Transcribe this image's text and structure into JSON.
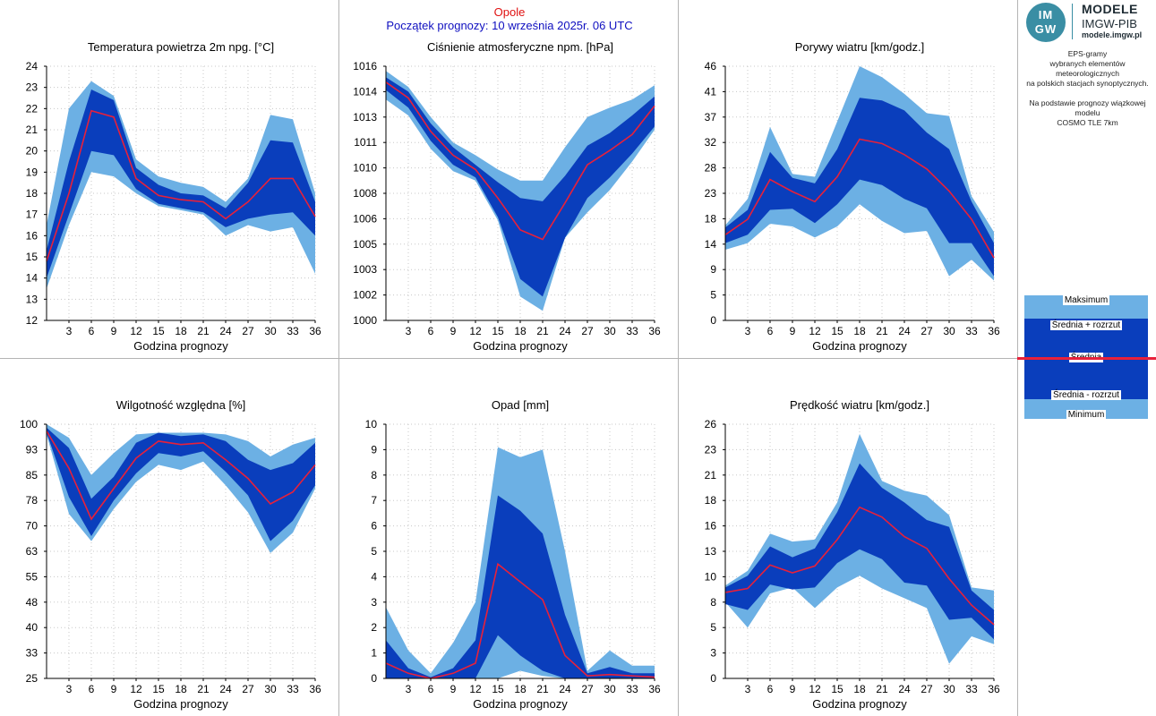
{
  "header": {
    "station": "Opole",
    "forecast_start": "Początek prognozy: 10 września 2025r. 06 UTC"
  },
  "logo": {
    "mark_line1": "IM",
    "mark_line2": "GW",
    "title": "MODELE",
    "org": "IMGW-PIB",
    "site": "modele.imgw.pl"
  },
  "description": {
    "line1": "EPS-gramy",
    "line2": "wybranych elementów meteorologicznych",
    "line3": "na polskich stacjach  synoptycznych.",
    "line4": "Na podstawie prognozy wiązkowej modelu",
    "line5": "COSMO TLE 7km"
  },
  "legend": {
    "max": "Maksimum",
    "mean_plus": "Średnia + rozrzut",
    "mean": "Średnia",
    "mean_minus": "Średnia - rozrzut",
    "min": "Minimum"
  },
  "colors": {
    "outer_band": "#6cb0e4",
    "inner_band": "#0a3ebc",
    "mean_line": "#e8203a",
    "grid": "#c8c8c8"
  },
  "chart_data": [
    {
      "id": "temp",
      "type": "area",
      "title": "Temperatura powietrza 2m npg. [°C]",
      "xlabel": "Godzina prognozy",
      "x": [
        0,
        3,
        6,
        9,
        12,
        15,
        18,
        21,
        24,
        27,
        30,
        33,
        36
      ],
      "ylim": [
        12,
        24
      ],
      "yticks": [
        "12",
        "13",
        "14",
        "15",
        "16",
        "17",
        "18",
        "19",
        "20",
        "21",
        "22",
        "23",
        "24"
      ],
      "xticks": [
        "3",
        "6",
        "9",
        "12",
        "15",
        "18",
        "21",
        "24",
        "27",
        "30",
        "33",
        "36"
      ],
      "min": [
        13.5,
        16.5,
        19.0,
        18.8,
        18.0,
        17.4,
        17.2,
        17.0,
        16.0,
        16.5,
        16.2,
        16.4,
        14.2
      ],
      "mean_minus": [
        14.0,
        17.0,
        20.0,
        19.8,
        18.2,
        17.5,
        17.3,
        17.1,
        16.4,
        16.8,
        17.0,
        17.1,
        16.0
      ],
      "mean": [
        14.8,
        18.0,
        21.9,
        21.6,
        18.7,
        17.9,
        17.7,
        17.6,
        16.8,
        17.6,
        18.7,
        18.7,
        16.9
      ],
      "mean_plus": [
        15.3,
        19.5,
        22.9,
        22.4,
        19.2,
        18.4,
        18.0,
        17.9,
        17.3,
        18.5,
        20.5,
        20.4,
        17.6
      ],
      "max": [
        16.5,
        22.0,
        23.3,
        22.6,
        19.6,
        18.8,
        18.5,
        18.3,
        17.6,
        18.7,
        21.7,
        21.5,
        18.0
      ]
    },
    {
      "id": "pressure",
      "type": "area",
      "title": "Ciśnienie atmosferyczne npm. [hPa]",
      "xlabel": "Godzina prognozy",
      "x": [
        0,
        3,
        6,
        9,
        12,
        15,
        18,
        21,
        24,
        27,
        30,
        33,
        36
      ],
      "ylim": [
        1000,
        1016
      ],
      "yticks": [
        "1000",
        "1002",
        "1003",
        "1005",
        "1006",
        "1008",
        "1010",
        "1011",
        "1013",
        "1014",
        "1016"
      ],
      "xticks": [
        "3",
        "6",
        "9",
        "12",
        "15",
        "18",
        "21",
        "24",
        "27",
        "30",
        "33",
        "36"
      ],
      "min": [
        1013.9,
        1012.9,
        1010.8,
        1009.4,
        1008.8,
        1006.3,
        1001.5,
        1000.6,
        1005.2,
        1006.8,
        1008.2,
        1010.0,
        1012.0
      ],
      "mean_minus": [
        1014.5,
        1013.4,
        1011.3,
        1009.8,
        1009.0,
        1006.5,
        1002.6,
        1001.5,
        1005.2,
        1007.7,
        1009.0,
        1010.5,
        1012.2
      ],
      "mean": [
        1015.0,
        1014.0,
        1011.9,
        1010.4,
        1009.5,
        1007.7,
        1005.7,
        1005.1,
        1007.4,
        1009.8,
        1010.7,
        1011.7,
        1013.5
      ],
      "mean_plus": [
        1015.3,
        1014.4,
        1012.4,
        1010.9,
        1009.8,
        1008.7,
        1007.7,
        1007.5,
        1009.1,
        1011.0,
        1011.8,
        1012.9,
        1014.1
      ],
      "max": [
        1015.7,
        1014.7,
        1012.8,
        1011.2,
        1010.4,
        1009.5,
        1008.8,
        1008.8,
        1010.9,
        1012.8,
        1013.4,
        1013.9,
        1014.8
      ]
    },
    {
      "id": "gusts",
      "type": "area",
      "title": "Porywy wiatru [km/godz.]",
      "xlabel": "Godzina prognozy",
      "x": [
        0,
        3,
        6,
        9,
        12,
        15,
        18,
        21,
        24,
        27,
        30,
        33,
        36
      ],
      "ylim": [
        0,
        46
      ],
      "yticks": [
        "0",
        "5",
        "9",
        "14",
        "18",
        "23",
        "28",
        "32",
        "37",
        "41",
        "46"
      ],
      "xticks": [
        "3",
        "6",
        "9",
        "12",
        "15",
        "18",
        "21",
        "24",
        "27",
        "30",
        "33",
        "36"
      ],
      "min": [
        12.8,
        14.0,
        17.5,
        17.0,
        15.0,
        17.0,
        21.0,
        18.0,
        15.8,
        16.2,
        8.0,
        11.0,
        7.2
      ],
      "mean_minus": [
        14.0,
        15.5,
        20.0,
        20.2,
        17.6,
        21.0,
        25.5,
        24.5,
        22.0,
        20.3,
        14.0,
        14.0,
        8.0
      ],
      "mean": [
        15.5,
        18.3,
        25.5,
        23.3,
        21.5,
        26.0,
        32.8,
        32.0,
        30.0,
        27.4,
        23.4,
        18.3,
        11.3
      ],
      "mean_plus": [
        16.8,
        20.0,
        30.5,
        25.8,
        24.8,
        31.0,
        40.3,
        39.8,
        38.0,
        34.0,
        31.0,
        21.5,
        14.0
      ],
      "max": [
        17.2,
        22.0,
        35.0,
        26.5,
        26.0,
        36.0,
        46.0,
        44.0,
        41.0,
        37.5,
        37.0,
        22.5,
        16.0
      ]
    },
    {
      "id": "humidity",
      "type": "area",
      "title": "Wilgotność względna [%]",
      "xlabel": "Godzina prognozy",
      "x": [
        0,
        3,
        6,
        9,
        12,
        15,
        18,
        21,
        24,
        27,
        30,
        33,
        36
      ],
      "ylim": [
        25,
        100
      ],
      "yticks": [
        "25",
        "33",
        "40",
        "48",
        "55",
        "63",
        "70",
        "78",
        "85",
        "93",
        "100"
      ],
      "xticks": [
        "3",
        "6",
        "9",
        "12",
        "15",
        "18",
        "21",
        "24",
        "27",
        "30",
        "33",
        "36"
      ],
      "min": [
        97.0,
        73.5,
        65.5,
        75.0,
        83.0,
        88.0,
        86.5,
        89.0,
        82.0,
        74.0,
        62.0,
        68.0,
        81.0
      ],
      "mean_minus": [
        97.5,
        78.5,
        67.0,
        77.5,
        85.5,
        91.5,
        90.5,
        92.0,
        86.0,
        79.0,
        65.5,
        71.5,
        82.0
      ],
      "mean": [
        98.0,
        87.0,
        72.0,
        81.0,
        90.0,
        95.0,
        94.0,
        94.5,
        89.5,
        84.0,
        76.5,
        80.0,
        88.0
      ],
      "mean_plus": [
        99.0,
        93.0,
        78.0,
        84.5,
        94.5,
        97.5,
        96.5,
        97.0,
        95.0,
        89.5,
        86.5,
        88.5,
        94.5
      ],
      "max": [
        100.0,
        96.0,
        85.0,
        91.5,
        97.0,
        97.5,
        97.5,
        97.5,
        97.0,
        95.0,
        90.5,
        94.0,
        96.0
      ]
    },
    {
      "id": "precip",
      "type": "area",
      "title": "Opad [mm]",
      "xlabel": "Godzina prognozy",
      "x": [
        0,
        3,
        6,
        9,
        12,
        15,
        18,
        21,
        24,
        27,
        30,
        33,
        36
      ],
      "ylim": [
        0,
        10
      ],
      "yticks": [
        "0",
        "1",
        "2",
        "3",
        "4",
        "5",
        "6",
        "7",
        "8",
        "9",
        "10"
      ],
      "xticks": [
        "3",
        "6",
        "9",
        "12",
        "15",
        "18",
        "21",
        "24",
        "27",
        "30",
        "33",
        "36"
      ],
      "min": [
        0,
        0,
        0,
        0,
        0,
        0,
        0.3,
        0.1,
        0,
        0,
        0,
        0,
        0
      ],
      "mean_minus": [
        0,
        0,
        0,
        0,
        0,
        1.7,
        0.9,
        0.3,
        0,
        0,
        0,
        0,
        0
      ],
      "mean": [
        0.6,
        0.2,
        0.0,
        0.2,
        0.6,
        4.5,
        3.8,
        3.1,
        0.9,
        0.1,
        0.15,
        0.1,
        0.05
      ],
      "mean_plus": [
        1.5,
        0.4,
        0.05,
        0.4,
        1.5,
        7.2,
        6.6,
        5.7,
        2.5,
        0.2,
        0.45,
        0.2,
        0.2
      ],
      "max": [
        2.8,
        1.1,
        0.2,
        1.4,
        3.0,
        9.1,
        8.7,
        9.0,
        5.0,
        0.3,
        1.1,
        0.5,
        0.5
      ]
    },
    {
      "id": "wind",
      "type": "area",
      "title": "Prędkość wiatru [km/godz.]",
      "xlabel": "Godzina prognozy",
      "x": [
        0,
        3,
        6,
        9,
        12,
        15,
        18,
        21,
        24,
        27,
        30,
        33,
        36
      ],
      "ylim": [
        0,
        26
      ],
      "yticks": [
        "0",
        "3",
        "5",
        "8",
        "10",
        "13",
        "16",
        "18",
        "21",
        "23",
        "26"
      ],
      "xticks": [
        "3",
        "6",
        "9",
        "12",
        "15",
        "18",
        "21",
        "24",
        "27",
        "30",
        "33",
        "36"
      ],
      "min": [
        7.8,
        5.2,
        8.7,
        9.3,
        7.2,
        9.3,
        10.5,
        9.2,
        8.2,
        7.2,
        1.5,
        4.3,
        3.5
      ],
      "mean_minus": [
        7.6,
        7.0,
        9.6,
        9.1,
        9.3,
        11.8,
        13.2,
        12.2,
        9.8,
        9.5,
        6.0,
        6.2,
        4.0
      ],
      "mean": [
        8.8,
        9.2,
        11.6,
        10.8,
        11.5,
        14.2,
        17.5,
        16.5,
        14.5,
        13.3,
        10.2,
        7.5,
        5.5
      ],
      "mean_plus": [
        9.3,
        10.5,
        13.5,
        12.4,
        13.3,
        17.0,
        22.0,
        19.5,
        18.0,
        16.2,
        15.5,
        9.0,
        7.0
      ],
      "max": [
        9.5,
        11.0,
        14.8,
        14.0,
        14.2,
        18.0,
        25.0,
        20.2,
        19.2,
        18.7,
        16.7,
        9.3,
        9.0
      ]
    }
  ]
}
